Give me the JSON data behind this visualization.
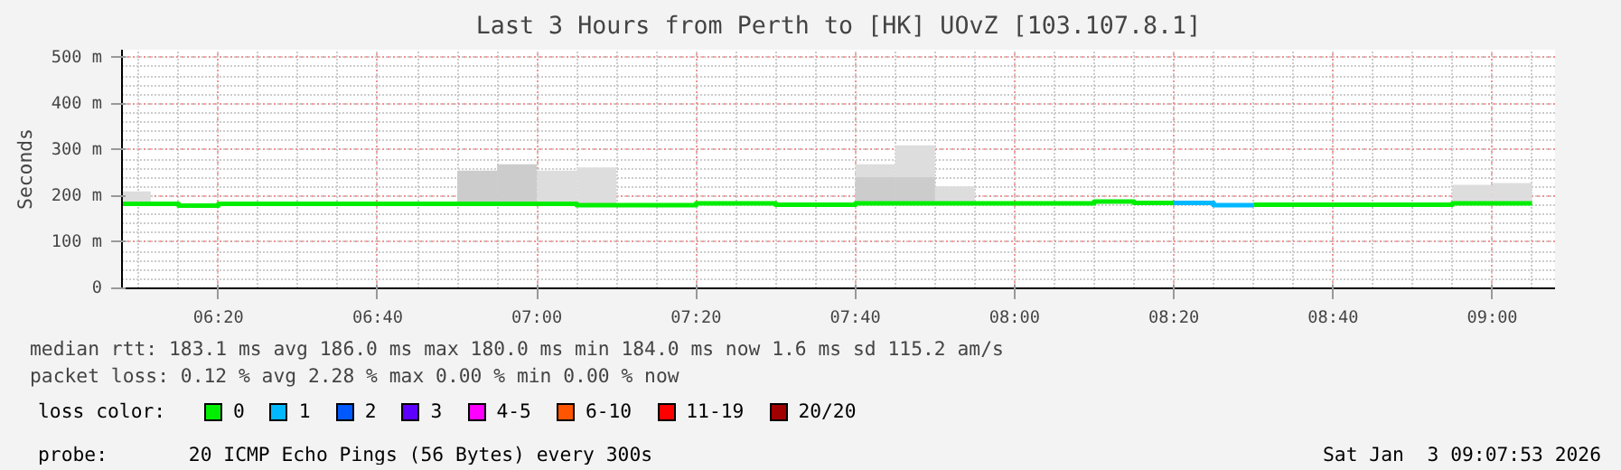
{
  "chart_data": {
    "type": "step",
    "title": "Last 3 Hours from Perth to [HK] UOvZ [103.107.8.1]",
    "ylabel": "Seconds",
    "legend_title": "loss color:",
    "xlim": [
      6.1314,
      9.1314
    ],
    "ylim": [
      0,
      517
    ],
    "xticks": [
      {
        "value": 6.3333,
        "label": "06:20"
      },
      {
        "value": 6.6667,
        "label": "06:40"
      },
      {
        "value": 7.0,
        "label": "07:00"
      },
      {
        "value": 7.3333,
        "label": "07:20"
      },
      {
        "value": 7.6667,
        "label": "07:40"
      },
      {
        "value": 8.0,
        "label": "08:00"
      },
      {
        "value": 8.3333,
        "label": "08:20"
      },
      {
        "value": 8.6667,
        "label": "08:40"
      },
      {
        "value": 9.0,
        "label": "09:00"
      }
    ],
    "yticks": [
      {
        "value": 0,
        "label": "0"
      },
      {
        "value": 100,
        "label": "100 m"
      },
      {
        "value": 200,
        "label": "200 m"
      },
      {
        "value": 300,
        "label": "300 m"
      },
      {
        "value": 400,
        "label": "400 m"
      },
      {
        "value": 500,
        "label": "500 m"
      }
    ],
    "grid": true,
    "legend": "bottom",
    "series": [
      {
        "type": "bar",
        "x": [
          6.15,
          6.875,
          6.9583,
          7.0417,
          7.125,
          7.7083,
          7.7917,
          7.875,
          8.9583,
          9.0417
        ],
        "base": [
          183,
          183,
          183,
          183,
          180,
          184,
          184,
          184,
          184,
          184
        ],
        "values": [
          27,
          72,
          86,
          72,
          82,
          85,
          126,
          37,
          40,
          44
        ],
        "colors": [
          "#dddddd",
          "#cccccc",
          "#cccccc",
          "#dddddd",
          "#dddddd",
          "#dddddd",
          "#dddddd",
          "#dddddd",
          "#dddddd",
          "#dddddd"
        ]
      },
      {
        "type": "bar",
        "x": [
          7.7083,
          7.7917
        ],
        "base": [
          184,
          184
        ],
        "values": [
          57,
          57
        ],
        "color": "#cccccc"
      },
      {
        "name": "0",
        "color": "#00ee00",
        "x": [
          6.1314,
          6.25,
          6.3333,
          7.0833,
          7.3333,
          7.5,
          7.6667,
          8.1667,
          8.25,
          8.3333,
          8.4167,
          8.5,
          8.9167,
          9.0833
        ],
        "values": [
          183,
          179,
          183,
          180,
          184,
          181,
          184,
          188,
          185,
          null,
          null,
          181,
          184,
          184
        ]
      },
      {
        "name": "1",
        "color": "#00b8ff",
        "x": [
          8.3333,
          8.4167,
          8.5
        ],
        "values": [
          185,
          180,
          180
        ]
      },
      {
        "name": "2",
        "color": "#0059ff"
      },
      {
        "name": "3",
        "color": "#5e00ff"
      },
      {
        "name": "4-5",
        "color": "#ff00ff"
      },
      {
        "name": "6-10",
        "color": "#ff5500"
      },
      {
        "name": "11-19",
        "color": "#ff0000"
      },
      {
        "name": "20/20",
        "color": "#a10000"
      }
    ],
    "annotations": [
      "median rtt:  183.1 ms avg  186.0 ms max  180.0 ms min  184.0 ms now  1.6 ms sd  115.2   am/s",
      "packet loss: 0.12 % avg  2.28 % max  0.00 % min  0.00 % now",
      "probe:       20 ICMP Echo Pings (56 Bytes) every 300s",
      "Sat Jan  3 09:07:53 2026"
    ]
  }
}
